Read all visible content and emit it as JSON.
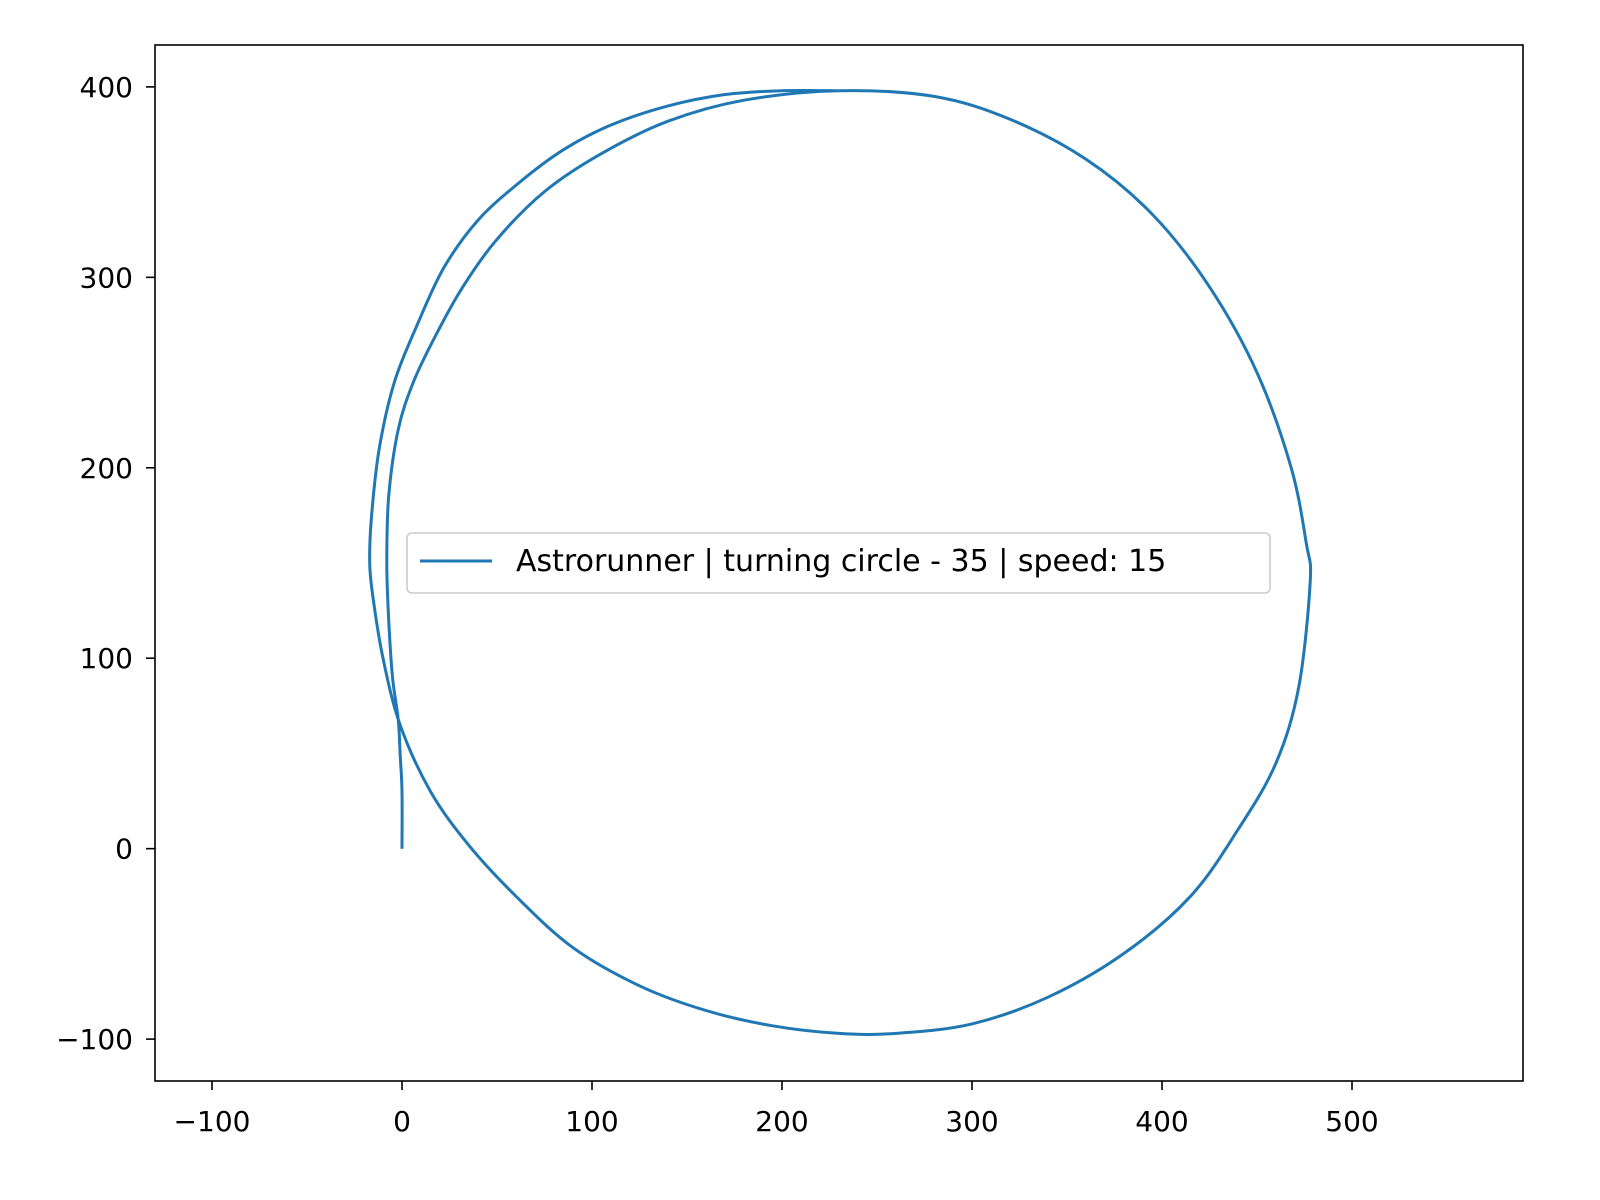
{
  "chart_data": {
    "type": "line",
    "title": "",
    "xlabel": "",
    "ylabel": "",
    "xlim": [
      -130,
      590
    ],
    "ylim": [
      -122,
      422
    ],
    "x_ticks": [
      -100,
      0,
      100,
      200,
      300,
      400,
      500
    ],
    "y_ticks": [
      -100,
      0,
      100,
      200,
      300,
      400
    ],
    "x_tick_labels": [
      "−100",
      "0",
      "100",
      "200",
      "300",
      "400",
      "500"
    ],
    "y_tick_labels": [
      "−100",
      "0",
      "100",
      "200",
      "300",
      "400"
    ],
    "grid": false,
    "legend_position": "center",
    "series": [
      {
        "name": "Astrorunner | turning circle - 35 | speed: 15",
        "color": "#1f77b4",
        "x": [
          0,
          0,
          -1,
          -2,
          -5,
          -7,
          -8,
          -7,
          -2,
          6,
          18,
          32,
          50,
          75,
          105,
          140,
          180,
          230,
          280,
          320,
          360,
          395,
          425,
          450,
          468,
          476,
          478,
          472,
          460,
          440,
          415,
          380,
          340,
          300,
          260,
          230,
          195,
          160,
          125,
          90,
          60,
          35,
          15,
          -1,
          -10,
          -15,
          -17,
          -16,
          -12,
          -4,
          8,
          22,
          40,
          62,
          85,
          110,
          140,
          170,
          200,
          230
        ],
        "y": [
          0,
          30,
          50,
          68,
          90,
          120,
          150,
          185,
          220,
          245,
          270,
          295,
          320,
          345,
          365,
          382,
          393,
          398,
          395,
          383,
          362,
          333,
          295,
          250,
          200,
          160,
          140,
          85,
          45,
          10,
          -25,
          -55,
          -78,
          -92,
          -97,
          -97,
          -93,
          -85,
          -72,
          -52,
          -25,
          2,
          30,
          65,
          100,
          130,
          150,
          175,
          210,
          245,
          275,
          305,
          330,
          350,
          367,
          380,
          390,
          396,
          398,
          398
        ]
      }
    ]
  }
}
